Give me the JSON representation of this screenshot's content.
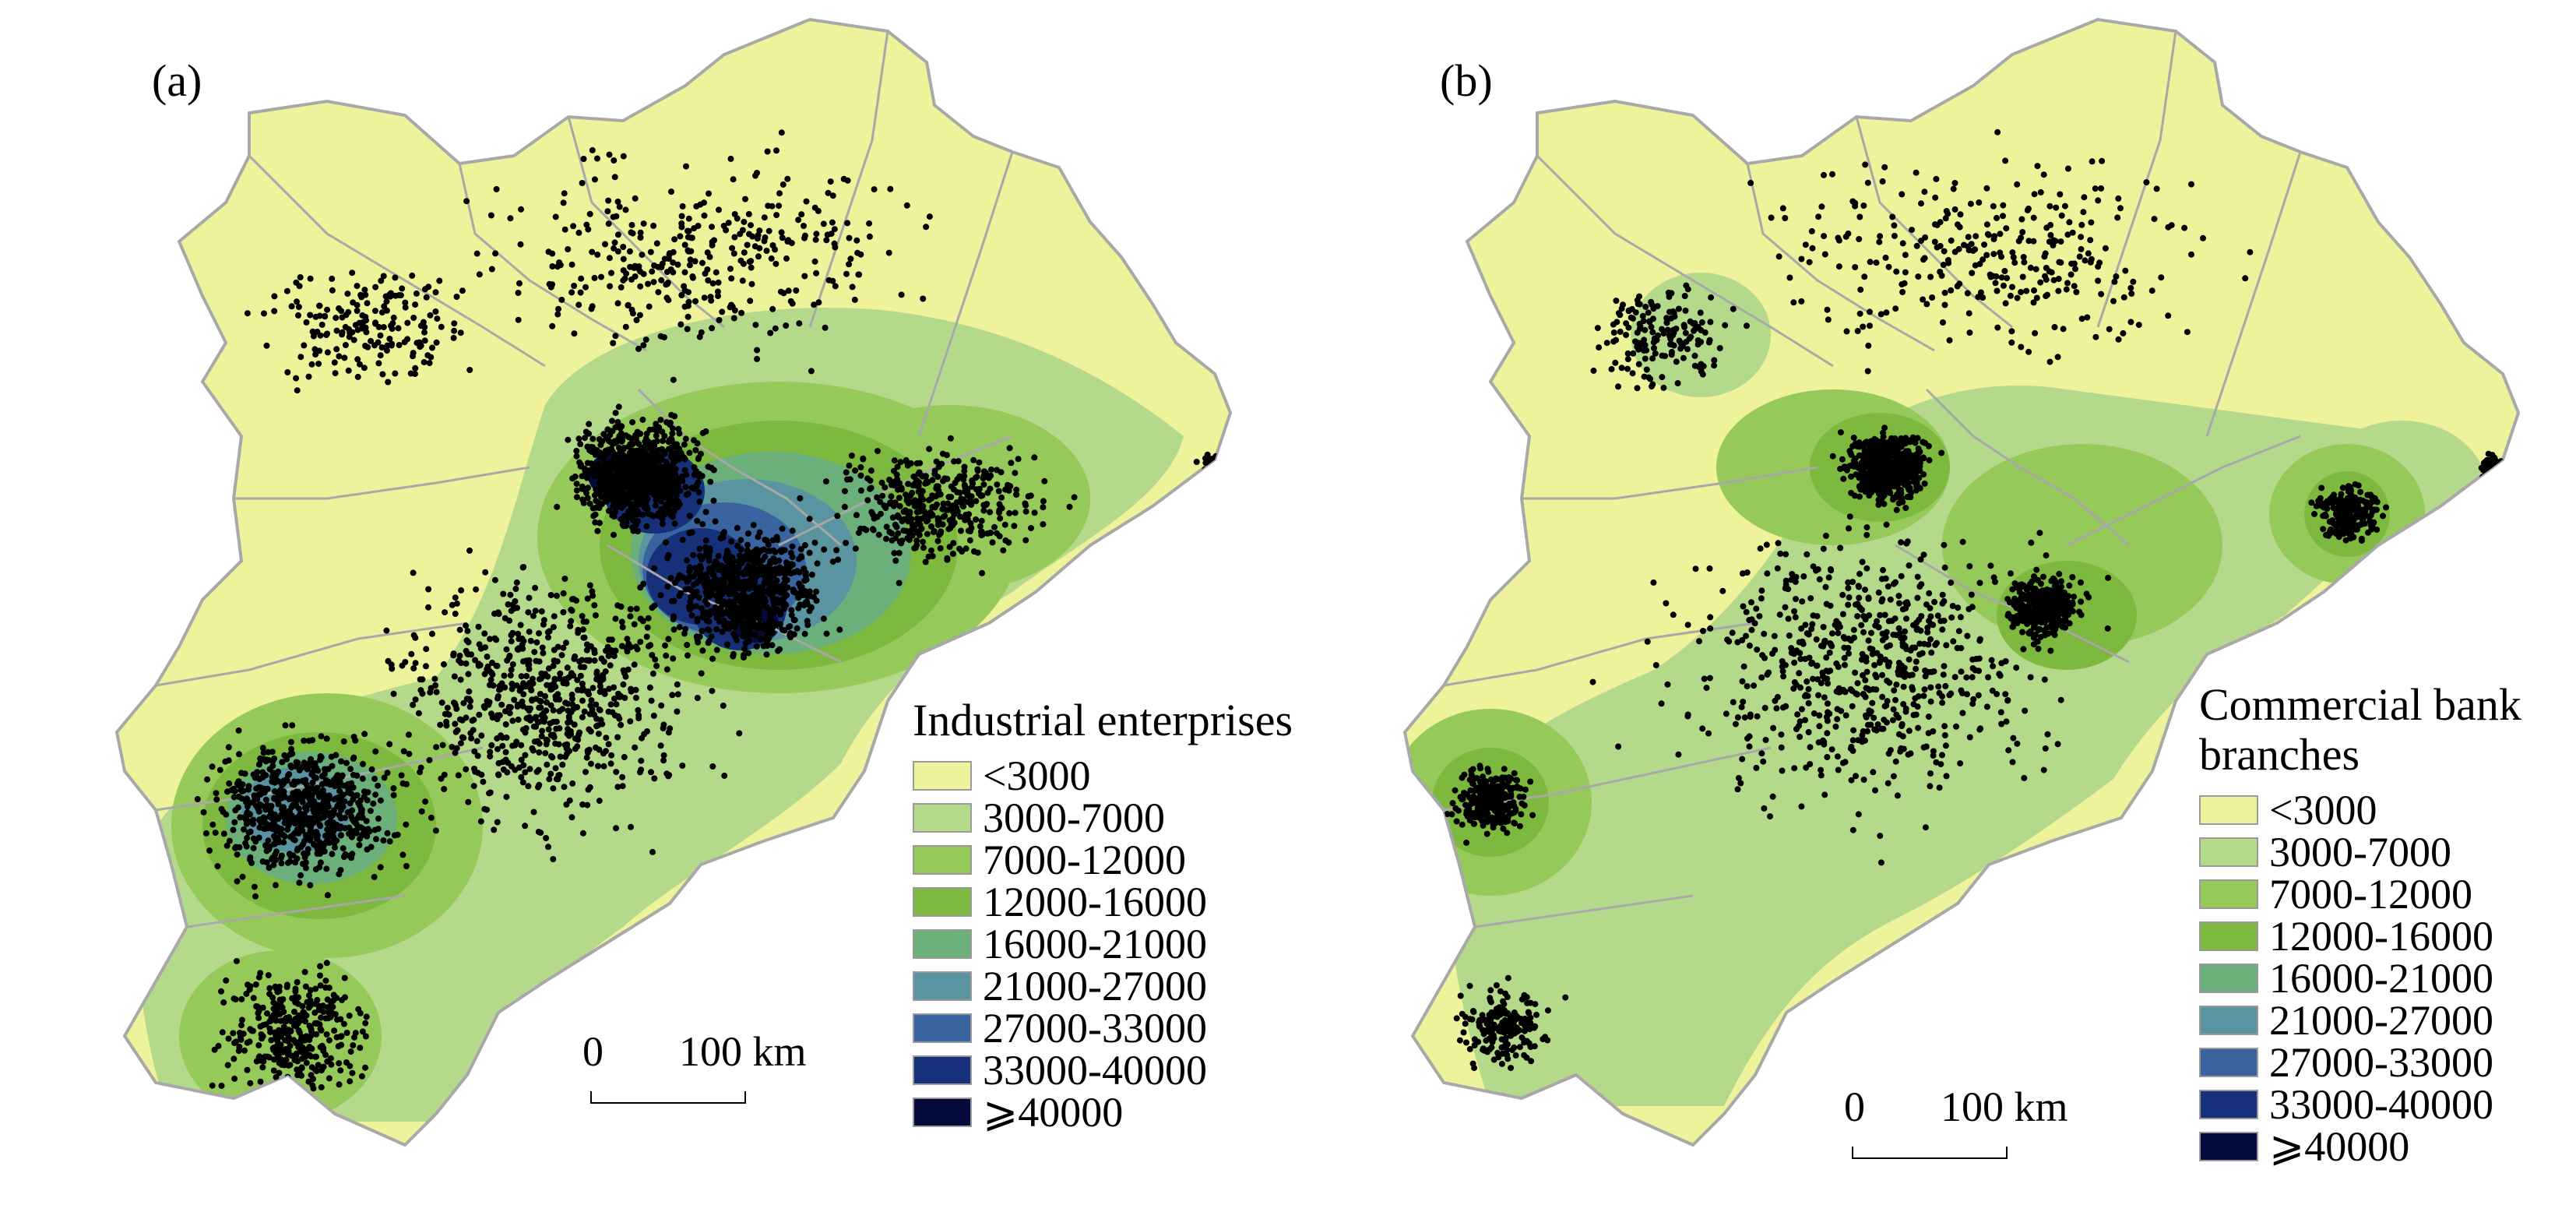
{
  "panels": [
    {
      "label": "(a)",
      "legend_title": [
        "Industrial enterprises"
      ],
      "scale": {
        "zero": "0",
        "distance": "100 km"
      }
    },
    {
      "label": "(b)",
      "legend_title": [
        "Commercial bank",
        "branches"
      ],
      "scale": {
        "zero": "0",
        "distance": "100 km"
      }
    }
  ],
  "legend_classes": [
    {
      "label": "<3000",
      "color": "#eef29b"
    },
    {
      "label": "3000-7000",
      "color": "#b5d98b"
    },
    {
      "label": "7000-12000",
      "color": "#95c95a"
    },
    {
      "label": "12000-16000",
      "color": "#7cb93e"
    },
    {
      "label": "16000-21000",
      "color": "#6bb07a"
    },
    {
      "label": "21000-27000",
      "color": "#5a94a0"
    },
    {
      "label": "27000-33000",
      "color": "#3a64a0"
    },
    {
      "label": "33000-40000",
      "color": "#17307a"
    },
    {
      "label": "⩾40000",
      "color": "#050a3c"
    }
  ],
  "colors": {
    "boundary": "#a8a8a8",
    "point": "#000000",
    "background": "#ffffff"
  },
  "point_layer": "point-symbols"
}
